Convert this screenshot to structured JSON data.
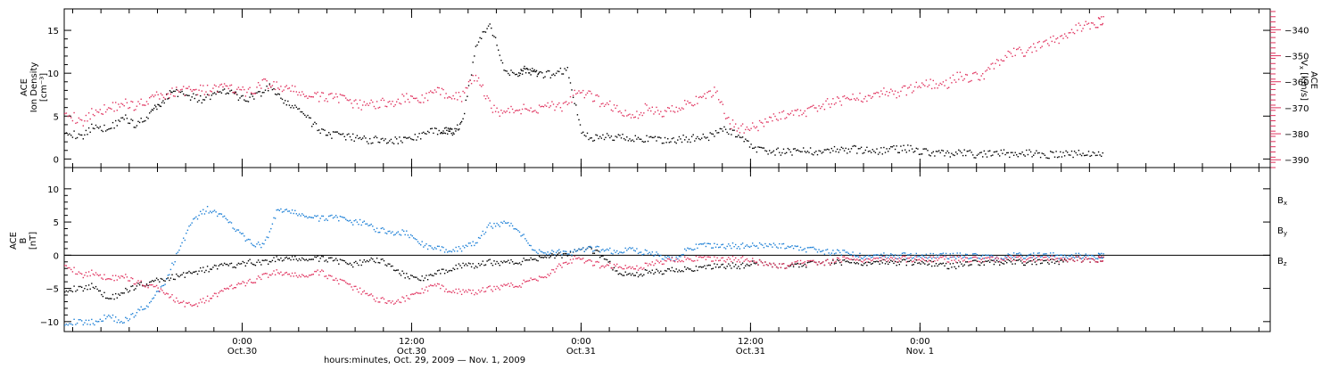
{
  "chart_data": [
    {
      "type": "scatter",
      "panel": "top",
      "ylabel": [
        "ACE",
        "Ion Density",
        "[cm⁻³]"
      ],
      "ylim": [
        -1,
        17.5
      ],
      "yticks": [
        0,
        5,
        10,
        15
      ],
      "ytick_labels": [
        "0",
        "5",
        "10",
        "15"
      ],
      "y2label": [
        "ACE",
        "V",
        "x",
        "[km/s]"
      ],
      "y2lim": [
        -393,
        -332
      ],
      "y2ticks": [
        -340,
        -350,
        -360,
        -370,
        -380,
        -390
      ],
      "y2tick_labels": [
        "−340",
        "−350",
        "−360",
        "−370",
        "−380",
        "−390"
      ],
      "y2_color": "#e0335f",
      "x_unit": "hours since Oct. 29, 2009 00:00",
      "xlim": [
        11.4,
        96.8
      ],
      "series": [
        {
          "color": "#000000",
          "axis": "left",
          "x": [
            11.4,
            12.5,
            13.5,
            14.5,
            15.5,
            16.5,
            17.5,
            18.2,
            19.0,
            20.0,
            21.0,
            22.0,
            23.0,
            24.0,
            25.0,
            26.0,
            27.0,
            28.0,
            29.0,
            30.0,
            31.0,
            32.0,
            33.0,
            34.0,
            35.0,
            36.0,
            37.0,
            38.0,
            38.5,
            38.9,
            39.5,
            40.5,
            41.5,
            42.5,
            43.5,
            44.0,
            44.5,
            45.0,
            46.0,
            47.0,
            48.0,
            49.0,
            50.0,
            51.0,
            52.0,
            53.0,
            54.0,
            55.0,
            56.0,
            57.0,
            58.0,
            59.0,
            60.0,
            61.0,
            62.0,
            63.0,
            64.0,
            65.0,
            66.0,
            67.0,
            68.0,
            69.0,
            70.0,
            71.0,
            72.0,
            73.0,
            74.0,
            75.0,
            76.0,
            77.0,
            78.0,
            79.0,
            80.0,
            81.0,
            82.0,
            83.0,
            84.0,
            85.0
          ],
          "y": [
            3.5,
            2.5,
            4.0,
            3.5,
            5.0,
            4.0,
            5.5,
            6.5,
            8.0,
            7.5,
            7.0,
            7.5,
            8.0,
            7.0,
            7.5,
            8.5,
            6.5,
            6.0,
            4.0,
            3.0,
            2.7,
            2.5,
            2.3,
            2.3,
            2.2,
            2.5,
            3.0,
            3.5,
            3.3,
            3.2,
            4.0,
            13.0,
            16.0,
            10.5,
            10.0,
            10.5,
            10.2,
            9.8,
            10.0,
            10.5,
            3.0,
            2.5,
            2.6,
            2.7,
            2.4,
            2.3,
            2.2,
            2.4,
            2.5,
            2.6,
            3.5,
            3.0,
            1.5,
            1.0,
            0.9,
            0.9,
            1.0,
            1.0,
            1.1,
            1.2,
            1.1,
            1.0,
            1.2,
            1.3,
            1.0,
            0.8,
            0.7,
            0.7,
            0.6,
            0.6,
            0.7,
            0.7,
            0.8,
            0.6,
            0.6,
            0.7,
            0.7,
            0.8
          ]
        },
        {
          "color": "#e0335f",
          "axis": "right",
          "x": [
            11.4,
            12.5,
            13.5,
            14.5,
            15.5,
            16.5,
            17.5,
            18.5,
            19.5,
            20.5,
            21.5,
            22.5,
            23.5,
            24.5,
            25.5,
            26.5,
            27.5,
            28.5,
            29.5,
            30.5,
            31.5,
            32.5,
            33.5,
            34.5,
            35.5,
            36.5,
            37.5,
            38.5,
            39.5,
            40.5,
            41.5,
            42.5,
            43.5,
            44.5,
            45.5,
            46.5,
            47.5,
            48.5,
            49.5,
            50.5,
            51.5,
            52.5,
            53.5,
            54.5,
            55.5,
            56.5,
            57.5,
            58.5,
            59.5,
            60.5,
            61.5,
            62.5,
            63.5,
            64.5,
            65.5,
            66.5,
            67.5,
            68.5,
            69.5,
            70.5,
            71.5,
            72.5,
            73.5,
            74.5,
            75.5,
            76.5,
            77.5,
            78.5,
            79.5,
            80.5,
            81.5,
            82.5,
            83.5,
            84.5,
            85.0
          ],
          "y": [
            -370,
            -376,
            -371,
            -370,
            -368,
            -369,
            -366,
            -365,
            -363,
            -363,
            -363,
            -362,
            -363,
            -364,
            -360,
            -362,
            -363,
            -365,
            -366,
            -365,
            -368,
            -369,
            -368,
            -368,
            -366,
            -367,
            -364,
            -364,
            -366,
            -357,
            -369,
            -372,
            -370,
            -371,
            -368,
            -370,
            -365,
            -365,
            -368,
            -370,
            -374,
            -370,
            -372,
            -370,
            -368,
            -367,
            -363,
            -376,
            -378,
            -377,
            -374,
            -372,
            -372,
            -370,
            -368,
            -367,
            -366,
            -365,
            -364,
            -364,
            -362,
            -360,
            -362,
            -358,
            -358,
            -357,
            -352,
            -349,
            -348,
            -346,
            -344,
            -341,
            -338,
            -337,
            -336
          ]
        }
      ]
    },
    {
      "type": "scatter",
      "panel": "bottom",
      "ylabel": [
        "ACE",
        "B",
        "[nT]"
      ],
      "ylim": [
        -11.5,
        13.2
      ],
      "yticks": [
        -10,
        -5,
        0,
        5,
        10
      ],
      "ytick_labels": [
        "−10",
        "−5",
        "0",
        "5",
        "10"
      ],
      "zero_line": true,
      "x_unit": "hours since Oct. 29, 2009 00:00",
      "xlim": [
        11.4,
        96.8
      ],
      "series": [
        {
          "name": "B",
          "sub": "x",
          "color": "#000000",
          "x": [
            11.4,
            12.5,
            13.5,
            14.5,
            15.5,
            16.5,
            17.5,
            18.5,
            19.5,
            20.5,
            21.5,
            22.5,
            23.5,
            24.5,
            25.5,
            26.5,
            27.5,
            28.5,
            29.5,
            30.5,
            31.5,
            32.5,
            33.5,
            34.5,
            35.5,
            36.5,
            37.5,
            38.5,
            39.5,
            40.5,
            41.5,
            42.5,
            43.5,
            44.5,
            45.5,
            46.5,
            47.5,
            48.5,
            49.5,
            50.5,
            51.5,
            52.5,
            53.5,
            54.5,
            55.5,
            56.5,
            57.5,
            58.5,
            59.5,
            60.5,
            61.5,
            62.5,
            63.5,
            64.5,
            65.5,
            66.5,
            67.5,
            68.5,
            69.5,
            70.5,
            71.5,
            72.5,
            73.5,
            74.5,
            75.5,
            76.5,
            77.5,
            78.5,
            79.5,
            80.5,
            81.5,
            82.5,
            83.5,
            84.5,
            85.0
          ],
          "y": [
            -5.0,
            -5.0,
            -4.5,
            -6.5,
            -5.5,
            -4.5,
            -4.0,
            -3.5,
            -3.0,
            -2.5,
            -2.0,
            -1.5,
            -1.5,
            -1.0,
            -1.0,
            -0.5,
            -0.5,
            -0.5,
            -0.5,
            -0.5,
            -1.5,
            -1.0,
            -0.5,
            -1.5,
            -3.0,
            -3.5,
            -3.0,
            -2.0,
            -1.5,
            -1.5,
            -1.0,
            -1.0,
            -1.0,
            -0.5,
            0.0,
            0.0,
            0.5,
            1.0,
            0.0,
            -2.5,
            -3.0,
            -2.5,
            -2.5,
            -2.0,
            -2.0,
            -2.0,
            -1.5,
            -1.5,
            -1.5,
            -1.0,
            -1.5,
            -1.5,
            -1.5,
            -1.0,
            -1.0,
            -1.0,
            -1.0,
            -1.0,
            -1.0,
            -1.0,
            -1.0,
            -1.0,
            -1.5,
            -1.5,
            -1.0,
            -1.0,
            -1.0,
            -1.0,
            -1.0,
            -1.0,
            -1.0,
            -0.5,
            -0.5,
            -0.5,
            -0.5
          ]
        },
        {
          "name": "B",
          "sub": "y",
          "color": "#1c7fd6",
          "x": [
            11.4,
            12.5,
            13.5,
            14.5,
            15.5,
            16.5,
            17.5,
            18.5,
            19.5,
            20.5,
            21.5,
            22.5,
            23.5,
            24.5,
            25.5,
            26.5,
            27.5,
            28.5,
            29.5,
            30.5,
            31.5,
            32.5,
            33.5,
            34.5,
            35.5,
            36.5,
            37.5,
            38.5,
            39.5,
            40.5,
            41.5,
            42.5,
            43.5,
            44.5,
            45.5,
            46.5,
            47.5,
            48.5,
            49.5,
            50.5,
            51.5,
            52.5,
            53.5,
            54.5,
            55.5,
            56.5,
            57.5,
            58.5,
            59.5,
            60.5,
            61.5,
            62.5,
            63.5,
            64.5,
            65.5,
            66.5,
            67.5,
            68.5,
            69.5,
            70.5,
            71.5,
            72.5,
            73.5,
            74.5,
            75.5,
            76.5,
            77.5,
            78.5,
            79.5,
            80.5,
            81.5,
            82.5,
            83.5,
            84.5,
            85.0
          ],
          "y": [
            -10.0,
            -10.0,
            -10.0,
            -9.0,
            -10.0,
            -8.5,
            -7.0,
            -4.0,
            1.0,
            5.5,
            7.0,
            6.0,
            4.0,
            2.0,
            1.5,
            7.0,
            6.5,
            6.0,
            5.5,
            6.0,
            5.0,
            5.0,
            4.0,
            3.5,
            3.5,
            2.0,
            1.0,
            1.0,
            1.0,
            2.0,
            4.5,
            5.0,
            4.0,
            1.0,
            0.5,
            0.5,
            0.5,
            1.0,
            1.0,
            0.5,
            1.0,
            0.5,
            0.0,
            -0.5,
            1.0,
            1.5,
            1.5,
            1.5,
            1.5,
            1.5,
            1.5,
            1.5,
            1.0,
            1.0,
            0.5,
            0.5,
            0.0,
            0.0,
            0.0,
            0.0,
            0.0,
            0.0,
            0.0,
            0.0,
            0.0,
            0.0,
            -0.5,
            0.0,
            0.0,
            0.0,
            0.0,
            0.0,
            0.0,
            0.0,
            0.0
          ]
        },
        {
          "name": "B",
          "sub": "z",
          "color": "#e0335f",
          "x": [
            11.4,
            12.5,
            13.5,
            14.5,
            15.5,
            16.5,
            17.5,
            18.5,
            19.5,
            20.5,
            21.5,
            22.5,
            23.5,
            24.5,
            25.5,
            26.5,
            27.5,
            28.5,
            29.5,
            30.5,
            31.5,
            32.5,
            33.5,
            34.5,
            35.5,
            36.5,
            37.5,
            38.5,
            39.5,
            40.5,
            41.5,
            42.5,
            43.5,
            44.5,
            45.5,
            46.5,
            47.5,
            48.5,
            49.5,
            50.5,
            51.5,
            52.5,
            53.5,
            54.5,
            55.5,
            56.5,
            57.5,
            58.5,
            59.5,
            60.5,
            61.5,
            62.5,
            63.5,
            64.5,
            65.5,
            66.5,
            67.5,
            68.5,
            69.5,
            70.5,
            71.5,
            72.5,
            73.5,
            74.5,
            75.5,
            76.5,
            77.5,
            78.5,
            79.5,
            80.5,
            81.5,
            82.5,
            83.5,
            84.5,
            85.0
          ],
          "y": [
            -1.0,
            -3.0,
            -2.5,
            -3.5,
            -3.0,
            -4.0,
            -4.5,
            -5.5,
            -7.0,
            -7.5,
            -6.5,
            -5.5,
            -4.5,
            -4.0,
            -3.0,
            -2.5,
            -3.0,
            -3.0,
            -2.5,
            -3.5,
            -4.5,
            -5.5,
            -6.5,
            -7.0,
            -6.5,
            -5.5,
            -4.5,
            -5.0,
            -5.5,
            -5.5,
            -5.0,
            -4.5,
            -4.5,
            -3.5,
            -3.0,
            -1.5,
            -0.5,
            -1.0,
            -1.5,
            -1.5,
            -2.0,
            -1.5,
            -1.0,
            -0.5,
            -0.5,
            -0.5,
            -0.5,
            -0.5,
            -0.5,
            -1.0,
            -1.5,
            -1.5,
            -1.0,
            -1.0,
            -1.0,
            -0.5,
            -0.5,
            -0.5,
            -0.5,
            -0.5,
            -0.5,
            -0.5,
            -0.5,
            -0.5,
            -0.5,
            -0.5,
            -0.5,
            -0.5,
            -0.5,
            -0.5,
            -0.5,
            -0.5,
            -0.5,
            -0.5,
            -0.5
          ]
        }
      ]
    }
  ],
  "x_axis": {
    "ticks": [
      {
        "hours": 24,
        "top": "0:00",
        "bottom": "Oct.30"
      },
      {
        "hours": 36,
        "top": "12:00",
        "bottom": "Oct.30"
      },
      {
        "hours": 48,
        "top": "0:00",
        "bottom": "Oct.31"
      },
      {
        "hours": 60,
        "top": "12:00",
        "bottom": "Oct.31"
      },
      {
        "hours": 72,
        "top": "0:00",
        "bottom": "Nov. 1"
      }
    ],
    "minor_tick_step_hours": 2,
    "label": "hours:minutes, Oct. 29, 2009 — Nov.  1, 2009"
  }
}
